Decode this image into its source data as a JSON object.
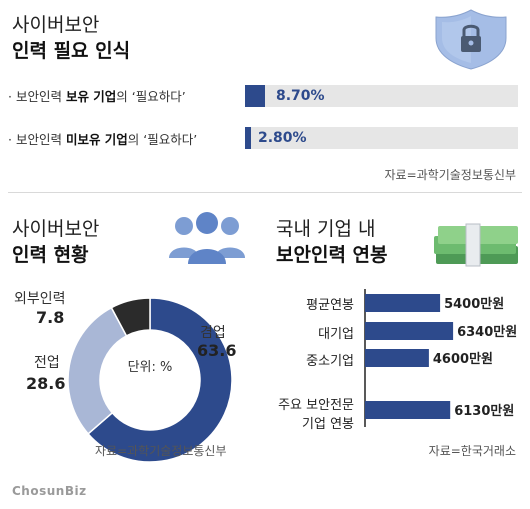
{
  "section1": {
    "title_line1": "사이버보안",
    "title_line2": "인력 필요 인식",
    "rows": [
      {
        "prefix": "보안인력 ",
        "bold": "보유 기업",
        "suffix": "의 ‘필요하다’",
        "value_text": "8.70%",
        "value": 8.7
      },
      {
        "prefix": "보안인력 ",
        "bold": "미보유 기업",
        "suffix": "의 ‘필요하다’",
        "value_text": "2.80%",
        "value": 2.8
      }
    ],
    "source": "자료=과학기술정보통신부"
  },
  "section2": {
    "title_line1": "사이버보안",
    "title_line2": "인력 현황",
    "center_label": "단위: %",
    "source": "자료=과학기술정보통신부"
  },
  "section3": {
    "title_line1": "국내 기업 내",
    "title_line2": "보안인력 연봉",
    "source": "자료=한국거래소"
  },
  "brand": "ChosunBiz",
  "colors": {
    "navy": "#2d4a8c",
    "light_blue": "#a9b7d6",
    "dark": "#2b2b2b",
    "track": "#e6e6e6"
  },
  "chart_data": [
    {
      "type": "bar",
      "orientation": "horizontal",
      "categories": [
        "보안인력 보유 기업의 ‘필요하다’",
        "보안인력 미보유 기업의 ‘필요하다’"
      ],
      "values": [
        8.7,
        2.8
      ],
      "value_labels": [
        "8.70%",
        "2.80%"
      ],
      "unit": "%"
    },
    {
      "type": "pie",
      "donut": true,
      "unit": "%",
      "slices": [
        {
          "label": "겸업",
          "value": 63.6,
          "color": "#2d4a8c"
        },
        {
          "label": "전업",
          "value": 28.6,
          "color": "#a9b7d6"
        },
        {
          "label": "외부인력",
          "value": 7.8,
          "color": "#2b2b2b"
        }
      ]
    },
    {
      "type": "bar",
      "orientation": "horizontal",
      "categories": [
        "평균연봉",
        "대기업",
        "중소기업",
        "주요 보안전문 기업 연봉"
      ],
      "category_lines": [
        [
          "평균연봉"
        ],
        [
          "대기업"
        ],
        [
          "중소기업"
        ],
        [
          "주요 보안전문",
          "기업 연봉"
        ]
      ],
      "values": [
        5400,
        6340,
        4600,
        6130
      ],
      "value_labels": [
        "5400만원",
        "6340만원",
        "4600만원",
        "6130만원"
      ],
      "unit": "만원",
      "color": "#2d4a8c"
    }
  ]
}
